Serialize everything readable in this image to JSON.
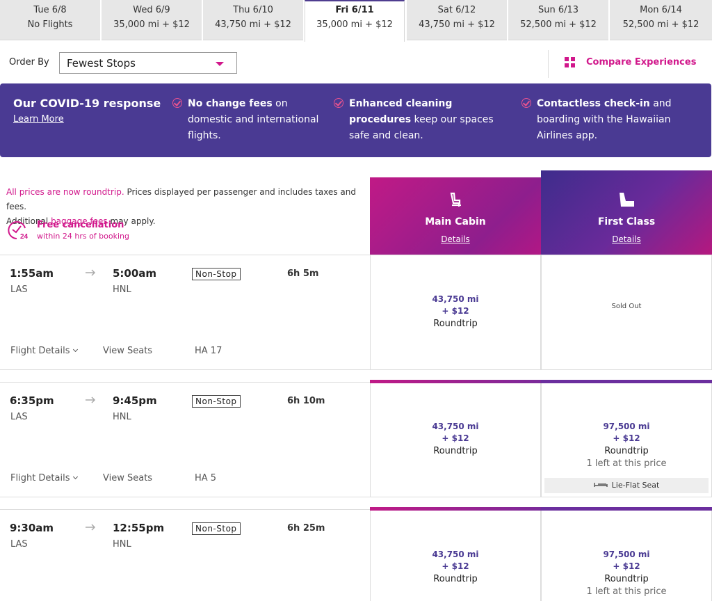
{
  "date_tabs": [
    {
      "day": "Tue 6/8",
      "price": "No Flights",
      "selected": false
    },
    {
      "day": "Wed 6/9",
      "price": "35,000 mi + $12",
      "selected": false
    },
    {
      "day": "Thu 6/10",
      "price": "43,750 mi + $12",
      "selected": false
    },
    {
      "day": "Fri 6/11",
      "price": "35,000 mi + $12",
      "selected": true
    },
    {
      "day": "Sat 6/12",
      "price": "43,750 mi + $12",
      "selected": false
    },
    {
      "day": "Sun 6/13",
      "price": "52,500 mi + $12",
      "selected": false
    },
    {
      "day": "Mon 6/14",
      "price": "52,500 mi + $12",
      "selected": false
    }
  ],
  "order": {
    "label": "Order By",
    "selected": "Fewest Stops"
  },
  "compare": {
    "label": "Compare Experiences",
    "icon": "grid-icon"
  },
  "covid": {
    "title": "Our COVID-19 response",
    "learn_more": "Learn More",
    "items": [
      {
        "bold": "No change fees",
        "rest": " on domestic and international flights."
      },
      {
        "bold": "Enhanced cleaning procedures",
        "rest": " keep our spaces safe and clean."
      },
      {
        "bold": "Contactless check-in",
        "rest": " and boarding with the Hawaiian Airlines app."
      }
    ]
  },
  "note": {
    "roundtrip": "All prices are now roundtrip.",
    "text1": " Prices displayed per passenger and includes taxes and fees.",
    "text2": "Additional ",
    "baggage": "baggage fees",
    "text3": " may apply."
  },
  "free_cancellation": {
    "title": "Free cancellation",
    "subtitle": "within 24 hrs of booking",
    "icon_text": "24"
  },
  "cabins": [
    {
      "name": "Main Cabin",
      "details": "Details"
    },
    {
      "name": "First Class",
      "details": "Details"
    }
  ],
  "flights": [
    {
      "depart_time": "1:55am",
      "depart_city": "LAS",
      "arrive_time": "5:00am",
      "arrive_city": "HNL",
      "stops": "Non-Stop",
      "duration": "6h 5m",
      "details_link": "Flight Details",
      "seats_link": "View Seats",
      "flight_number": "HA 17",
      "main": {
        "miles": "43,750 mi",
        "fee": "+ $12",
        "type": "Roundtrip"
      },
      "first": {
        "sold_out": "Sold Out"
      }
    },
    {
      "depart_time": "6:35pm",
      "depart_city": "LAS",
      "arrive_time": "9:45pm",
      "arrive_city": "HNL",
      "stops": "Non-Stop",
      "duration": "6h 10m",
      "details_link": "Flight Details",
      "seats_link": "View Seats",
      "flight_number": "HA 5",
      "main": {
        "miles": "43,750 mi",
        "fee": "+ $12",
        "type": "Roundtrip"
      },
      "first": {
        "miles": "97,500 mi",
        "fee": "+ $12",
        "type": "Roundtrip",
        "availability": "1 left at this price",
        "seat_badge": "Lie-Flat Seat"
      }
    },
    {
      "depart_time": "9:30am",
      "depart_city": "LAS",
      "arrive_time": "12:55pm",
      "arrive_city": "HNL",
      "stops": "Non-Stop",
      "duration": "6h 25m",
      "main": {
        "miles": "43,750 mi",
        "fee": "+ $12",
        "type": "Roundtrip"
      },
      "first": {
        "miles": "97,500 mi",
        "fee": "+ $12",
        "type": "Roundtrip",
        "availability": "1 left at this price"
      }
    }
  ],
  "colors": {
    "brand_purple": "#4a3a93",
    "brand_pink": "#d1178b"
  }
}
